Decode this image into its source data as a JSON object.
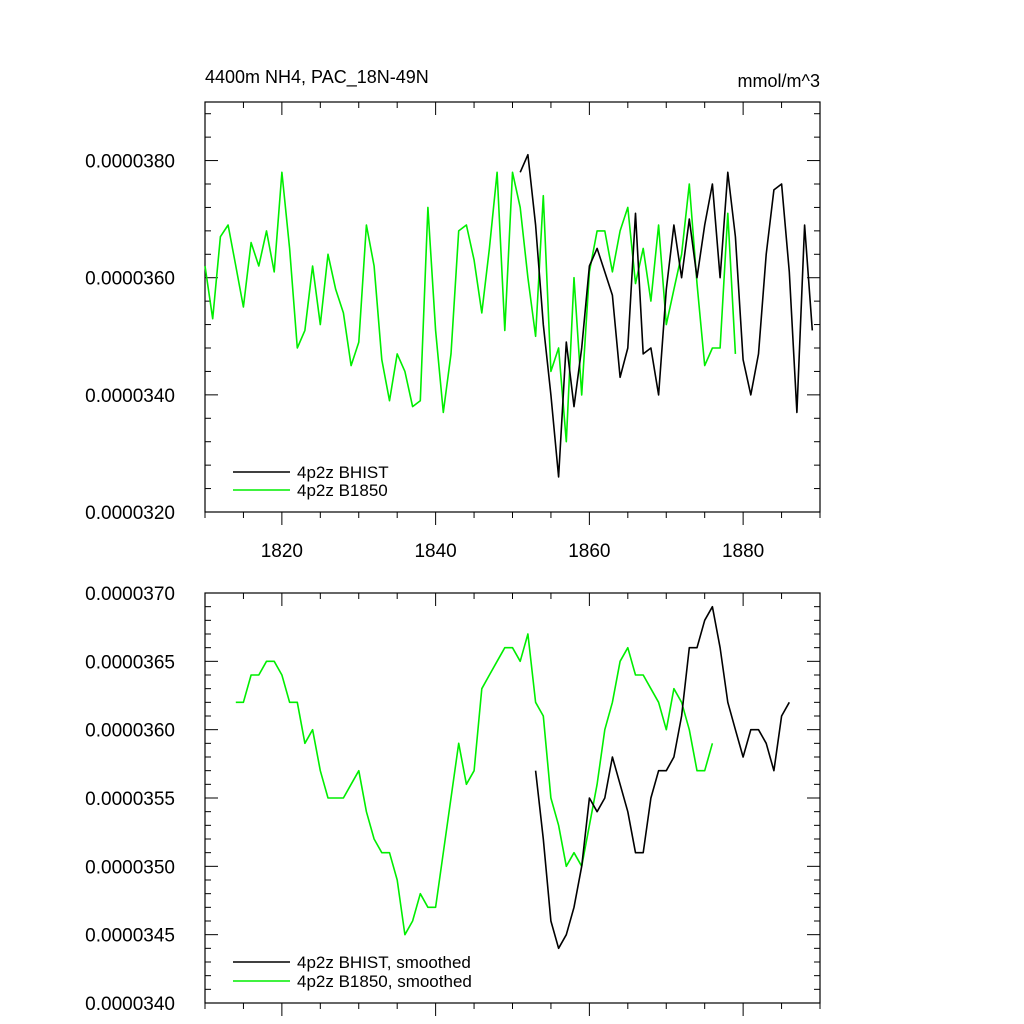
{
  "chart_data": [
    {
      "type": "line",
      "title": "4400m NH4, PAC_18N-49N",
      "units": "mmol/m^3",
      "xlim": [
        1810,
        1890
      ],
      "ylim": [
        3.2e-05,
        3.9e-05
      ],
      "xticks": [
        1820,
        1840,
        1860,
        1880
      ],
      "xtick_labels": [
        "1820",
        "1840",
        "1860",
        "1880"
      ],
      "yticks": [
        3.2e-05,
        3.4e-05,
        3.6e-05,
        3.8e-05
      ],
      "ytick_labels": [
        "0.0000320",
        "0.0000340",
        "0.0000360",
        "0.0000380"
      ],
      "legend_position": "bottom-left",
      "series": [
        {
          "name": "4p2z BHIST",
          "color": "#000000",
          "x": [
            1851,
            1852,
            1853,
            1854,
            1855,
            1856,
            1857,
            1858,
            1859,
            1860,
            1861,
            1862,
            1863,
            1864,
            1865,
            1866,
            1867,
            1868,
            1869,
            1870,
            1871,
            1872,
            1873,
            1874,
            1875,
            1876,
            1877,
            1878,
            1879,
            1880,
            1881,
            1882,
            1883,
            1884,
            1885,
            1886,
            1887,
            1888,
            1889
          ],
          "y": [
            3.78e-05,
            3.81e-05,
            3.69e-05,
            3.52e-05,
            3.4e-05,
            3.26e-05,
            3.49e-05,
            3.38e-05,
            3.48e-05,
            3.62e-05,
            3.65e-05,
            3.61e-05,
            3.57e-05,
            3.43e-05,
            3.48e-05,
            3.71e-05,
            3.47e-05,
            3.48e-05,
            3.4e-05,
            3.58e-05,
            3.69e-05,
            3.6e-05,
            3.7e-05,
            3.6e-05,
            3.69e-05,
            3.76e-05,
            3.6e-05,
            3.78e-05,
            3.67e-05,
            3.46e-05,
            3.4e-05,
            3.47e-05,
            3.64e-05,
            3.75e-05,
            3.76e-05,
            3.61e-05,
            3.37e-05,
            3.69e-05,
            3.51e-05
          ]
        },
        {
          "name": "4p2z B1850",
          "color": "#00ee00",
          "x": [
            1810,
            1811,
            1812,
            1813,
            1814,
            1815,
            1816,
            1817,
            1818,
            1819,
            1820,
            1821,
            1822,
            1823,
            1824,
            1825,
            1826,
            1827,
            1828,
            1829,
            1830,
            1831,
            1832,
            1833,
            1834,
            1835,
            1836,
            1837,
            1838,
            1839,
            1840,
            1841,
            1842,
            1843,
            1844,
            1845,
            1846,
            1847,
            1848,
            1849,
            1850,
            1851,
            1852,
            1853,
            1854,
            1855,
            1856,
            1857,
            1858,
            1859,
            1860,
            1861,
            1862,
            1863,
            1864,
            1865,
            1866,
            1867,
            1868,
            1869,
            1870,
            1871,
            1872,
            1873,
            1874,
            1875,
            1876,
            1877,
            1878,
            1879
          ],
          "y": [
            3.62e-05,
            3.53e-05,
            3.67e-05,
            3.69e-05,
            3.62e-05,
            3.55e-05,
            3.66e-05,
            3.62e-05,
            3.68e-05,
            3.61e-05,
            3.78e-05,
            3.65e-05,
            3.48e-05,
            3.51e-05,
            3.62e-05,
            3.52e-05,
            3.64e-05,
            3.58e-05,
            3.54e-05,
            3.45e-05,
            3.49e-05,
            3.69e-05,
            3.62e-05,
            3.46e-05,
            3.39e-05,
            3.47e-05,
            3.44e-05,
            3.38e-05,
            3.39e-05,
            3.72e-05,
            3.51e-05,
            3.37e-05,
            3.47e-05,
            3.68e-05,
            3.69e-05,
            3.63e-05,
            3.54e-05,
            3.65e-05,
            3.78e-05,
            3.51e-05,
            3.78e-05,
            3.72e-05,
            3.6e-05,
            3.5e-05,
            3.74e-05,
            3.44e-05,
            3.48e-05,
            3.32e-05,
            3.6e-05,
            3.4e-05,
            3.61e-05,
            3.68e-05,
            3.68e-05,
            3.61e-05,
            3.68e-05,
            3.72e-05,
            3.59e-05,
            3.65e-05,
            3.56e-05,
            3.69e-05,
            3.52e-05,
            3.58e-05,
            3.64e-05,
            3.76e-05,
            3.59e-05,
            3.45e-05,
            3.48e-05,
            3.48e-05,
            3.71e-05,
            3.47e-05
          ]
        }
      ]
    },
    {
      "type": "line",
      "xlim": [
        1810,
        1890
      ],
      "ylim": [
        3.4e-05,
        3.7e-05
      ],
      "xticks": [
        1820,
        1840,
        1860,
        1880
      ],
      "yticks": [
        3.4e-05,
        3.45e-05,
        3.5e-05,
        3.55e-05,
        3.6e-05,
        3.65e-05,
        3.7e-05
      ],
      "ytick_labels": [
        "0.0000340",
        "0.0000345",
        "0.0000350",
        "0.0000355",
        "0.0000360",
        "0.0000365",
        "0.0000370"
      ],
      "legend_position": "bottom-left",
      "series": [
        {
          "name": "4p2z BHIST, smoothed",
          "color": "#000000",
          "x": [
            1853,
            1854,
            1855,
            1856,
            1857,
            1858,
            1859,
            1860,
            1861,
            1862,
            1863,
            1864,
            1865,
            1866,
            1867,
            1868,
            1869,
            1870,
            1871,
            1872,
            1873,
            1874,
            1875,
            1876,
            1877,
            1878,
            1879,
            1880,
            1881,
            1882,
            1883,
            1884,
            1885,
            1886
          ],
          "y": [
            3.57e-05,
            3.52e-05,
            3.46e-05,
            3.44e-05,
            3.45e-05,
            3.47e-05,
            3.5e-05,
            3.55e-05,
            3.54e-05,
            3.55e-05,
            3.58e-05,
            3.56e-05,
            3.54e-05,
            3.51e-05,
            3.51e-05,
            3.55e-05,
            3.57e-05,
            3.57e-05,
            3.58e-05,
            3.61e-05,
            3.66e-05,
            3.66e-05,
            3.68e-05,
            3.69e-05,
            3.66e-05,
            3.62e-05,
            3.6e-05,
            3.58e-05,
            3.6e-05,
            3.6e-05,
            3.59e-05,
            3.57e-05,
            3.61e-05,
            3.62e-05
          ]
        },
        {
          "name": "4p2z B1850, smoothed",
          "color": "#00ee00",
          "x": [
            1814,
            1815,
            1816,
            1817,
            1818,
            1819,
            1820,
            1821,
            1822,
            1823,
            1824,
            1825,
            1826,
            1827,
            1828,
            1829,
            1830,
            1831,
            1832,
            1833,
            1834,
            1835,
            1836,
            1837,
            1838,
            1839,
            1840,
            1841,
            1842,
            1843,
            1844,
            1845,
            1846,
            1847,
            1848,
            1849,
            1850,
            1851,
            1852,
            1853,
            1854,
            1855,
            1856,
            1857,
            1858,
            1859,
            1860,
            1861,
            1862,
            1863,
            1864,
            1865,
            1866,
            1867,
            1868,
            1869,
            1870,
            1871,
            1872,
            1873,
            1874,
            1875,
            1876
          ],
          "y": [
            3.62e-05,
            3.62e-05,
            3.64e-05,
            3.64e-05,
            3.65e-05,
            3.65e-05,
            3.64e-05,
            3.62e-05,
            3.62e-05,
            3.59e-05,
            3.6e-05,
            3.57e-05,
            3.55e-05,
            3.55e-05,
            3.55e-05,
            3.56e-05,
            3.57e-05,
            3.54e-05,
            3.52e-05,
            3.51e-05,
            3.51e-05,
            3.49e-05,
            3.45e-05,
            3.46e-05,
            3.48e-05,
            3.47e-05,
            3.47e-05,
            3.51e-05,
            3.55e-05,
            3.59e-05,
            3.56e-05,
            3.57e-05,
            3.63e-05,
            3.64e-05,
            3.65e-05,
            3.66e-05,
            3.66e-05,
            3.65e-05,
            3.67e-05,
            3.62e-05,
            3.61e-05,
            3.55e-05,
            3.53e-05,
            3.5e-05,
            3.51e-05,
            3.5e-05,
            3.53e-05,
            3.56e-05,
            3.6e-05,
            3.62e-05,
            3.65e-05,
            3.66e-05,
            3.64e-05,
            3.64e-05,
            3.63e-05,
            3.62e-05,
            3.6e-05,
            3.63e-05,
            3.62e-05,
            3.6e-05,
            3.57e-05,
            3.57e-05,
            3.59e-05
          ]
        }
      ]
    }
  ]
}
